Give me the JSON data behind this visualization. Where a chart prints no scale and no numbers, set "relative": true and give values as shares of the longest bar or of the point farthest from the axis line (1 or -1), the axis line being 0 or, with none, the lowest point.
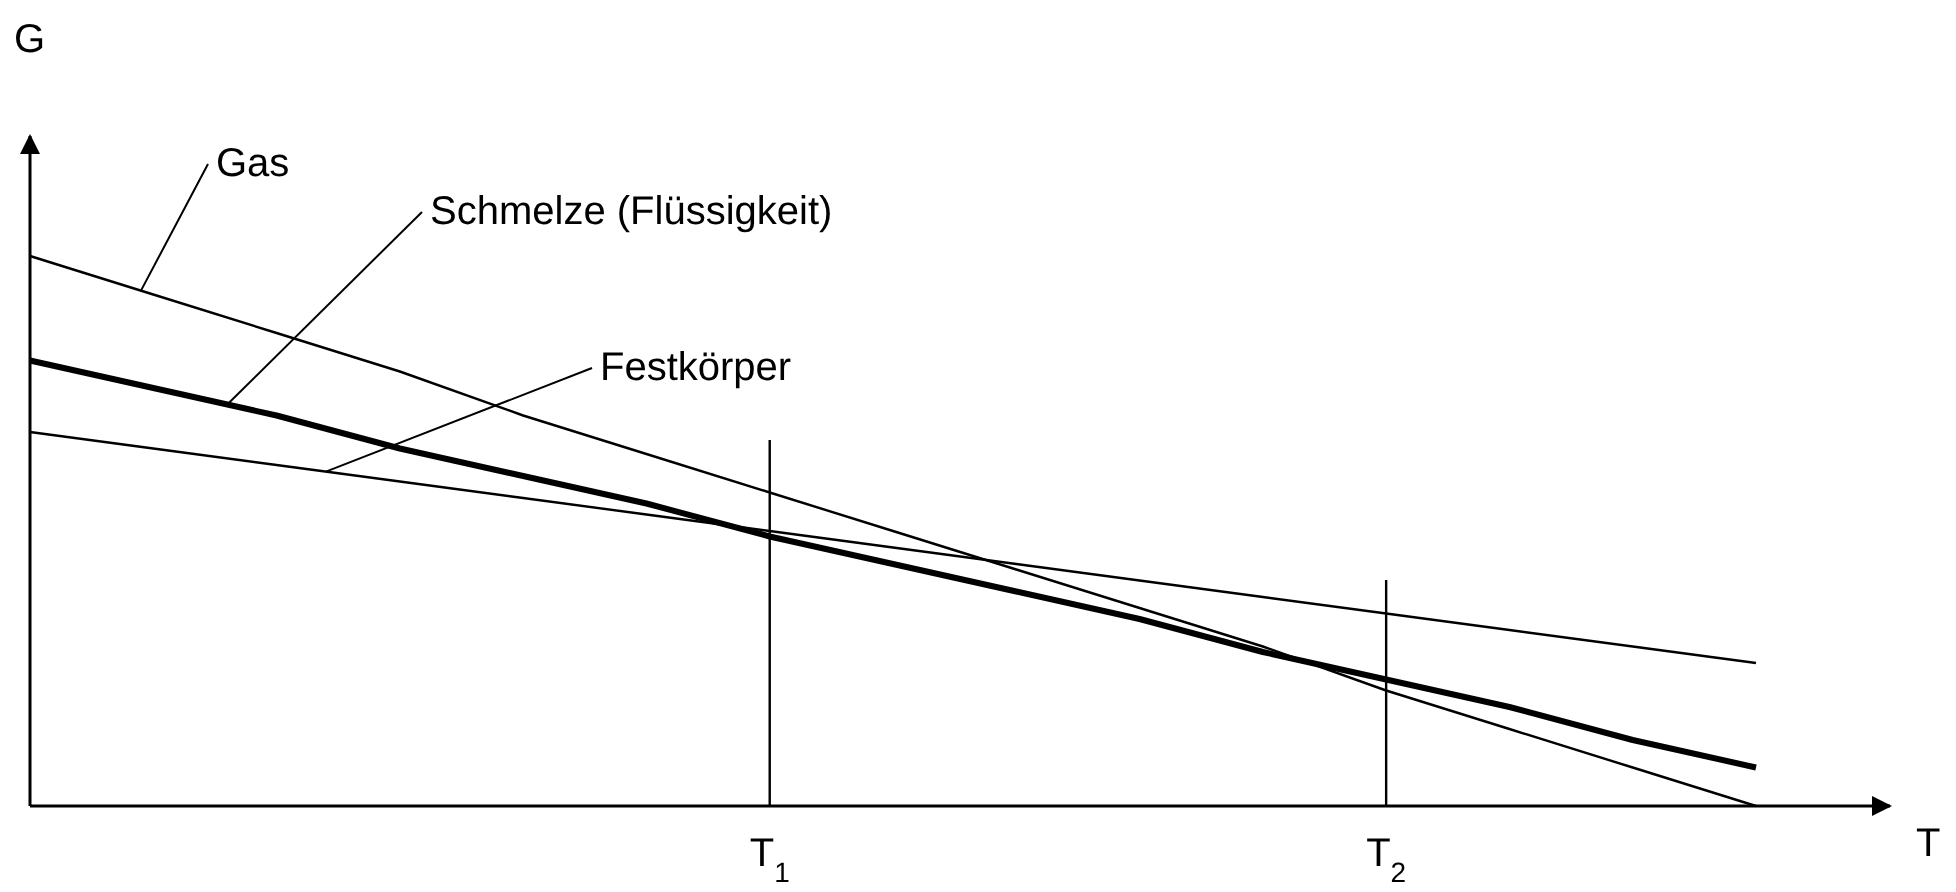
{
  "chart_data": {
    "type": "line",
    "relative": true,
    "xlabel": "T",
    "ylabel": "G",
    "categories": [
      null,
      null,
      null,
      null,
      null,
      null,
      "T$_{1}$",
      null,
      null,
      null,
      null,
      "T$_{2}$",
      null,
      null,
      null
    ],
    "series": [
      {
        "name": "Gas",
        "color": "#000000",
        "values": [
          1,
          0.93,
          0.86,
          0.79,
          0.71,
          0.64,
          0.57,
          0.5,
          0.43,
          0.36,
          0.29,
          0.21,
          0.14,
          0.07,
          0
        ]
      },
      {
        "name": "Schmelze (Flüssigkeit)",
        "color": "#000000",
        "values": [
          0.81,
          0.76,
          0.71,
          0.65,
          0.6,
          0.55,
          0.49,
          0.44,
          0.39,
          0.34,
          0.28,
          0.23,
          0.18,
          0.12,
          0.07
        ]
      },
      {
        "name": "Festkörper",
        "color": "#000000",
        "values": [
          0.68,
          0.65,
          0.62,
          0.59,
          0.56,
          0.53,
          0.5,
          0.47,
          0.44,
          0.41,
          0.38,
          0.35,
          0.32,
          0.29,
          0.26
        ]
      }
    ],
    "ref_lines": [
      {
        "axis": "x",
        "value": "T$_{1}$",
        "color": "#000000"
      },
      {
        "axis": "x",
        "value": "T$_{2}$",
        "color": "#000000"
      }
    ],
    "marker": "none",
    "line_style": "solid"
  }
}
